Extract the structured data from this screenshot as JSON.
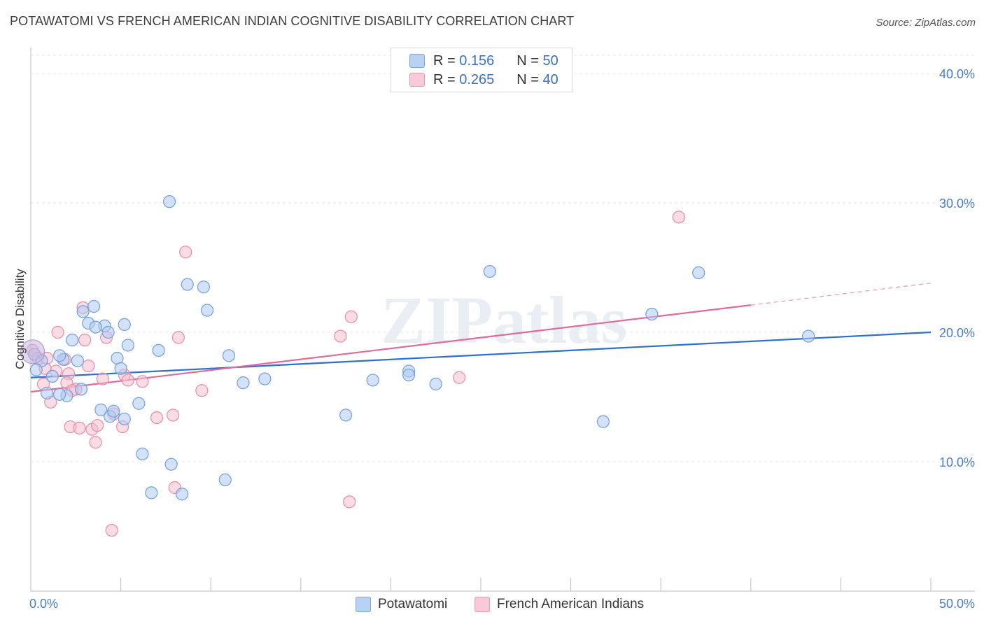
{
  "title": "POTAWATOMI VS FRENCH AMERICAN INDIAN COGNITIVE DISABILITY CORRELATION CHART",
  "source": "Source: ZipAtlas.com",
  "watermark": "ZIPatlas",
  "legend_top": {
    "r_label": "R =",
    "n_label": "N =",
    "rows": [
      {
        "r": "0.156",
        "n": "50"
      },
      {
        "r": "0.265",
        "n": "40"
      }
    ]
  },
  "chart_data": {
    "type": "scatter",
    "title": "POTAWATOMI VS FRENCH AMERICAN INDIAN COGNITIVE DISABILITY CORRELATION CHART",
    "xlabel": "",
    "ylabel": "Cognitive Disability",
    "xlim": [
      0,
      50
    ],
    "ylim": [
      0,
      42
    ],
    "x_tick_labels": [
      "0.0%",
      "50.0%"
    ],
    "y_ticks": [
      10,
      20,
      30,
      40
    ],
    "y_tick_labels": [
      "10.0%",
      "20.0%",
      "30.0%",
      "40.0%"
    ],
    "grid": true,
    "colors": {
      "blue_fill": "#aecbf3",
      "blue_stroke": "#6f9fe0",
      "blue_line": "#2b6fd1",
      "pink_fill": "#f6bfd0",
      "pink_stroke": "#e98aa9",
      "pink_line": "#e06b98",
      "axis_label": "#4a7cc9"
    },
    "series": [
      {
        "name": "Potawatomi",
        "R": 0.156,
        "N": 50,
        "trend": {
          "x": [
            0,
            50
          ],
          "y": [
            16.5,
            20.0
          ]
        },
        "points": [
          [
            0.2,
            18.3
          ],
          [
            0.6,
            17.8
          ],
          [
            0.3,
            17.1
          ],
          [
            1.2,
            16.6
          ],
          [
            1.8,
            17.9
          ],
          [
            1.6,
            18.2
          ],
          [
            0.9,
            15.3
          ],
          [
            2.0,
            15.1
          ],
          [
            2.8,
            15.6
          ],
          [
            3.5,
            22.0
          ],
          [
            3.2,
            20.7
          ],
          [
            4.1,
            20.5
          ],
          [
            2.3,
            19.4
          ],
          [
            2.9,
            21.6
          ],
          [
            5.2,
            20.6
          ],
          [
            4.3,
            20.0
          ],
          [
            4.8,
            18.0
          ],
          [
            5.4,
            19.0
          ],
          [
            7.1,
            18.6
          ],
          [
            3.9,
            14.0
          ],
          [
            4.4,
            13.5
          ],
          [
            5.2,
            13.3
          ],
          [
            6.0,
            14.5
          ],
          [
            4.6,
            13.9
          ],
          [
            8.7,
            23.7
          ],
          [
            9.6,
            23.5
          ],
          [
            7.7,
            30.1
          ],
          [
            9.8,
            21.7
          ],
          [
            11.0,
            18.2
          ],
          [
            11.8,
            16.1
          ],
          [
            13.0,
            16.4
          ],
          [
            6.2,
            10.6
          ],
          [
            7.8,
            9.8
          ],
          [
            10.8,
            8.6
          ],
          [
            6.7,
            7.6
          ],
          [
            8.4,
            7.5
          ],
          [
            19.0,
            16.3
          ],
          [
            21.0,
            17.0
          ],
          [
            21.0,
            16.7
          ],
          [
            22.5,
            16.0
          ],
          [
            17.5,
            13.6
          ],
          [
            25.5,
            24.7
          ],
          [
            31.8,
            13.1
          ],
          [
            34.5,
            21.4
          ],
          [
            37.1,
            24.6
          ],
          [
            43.2,
            19.7
          ],
          [
            1.6,
            15.2
          ],
          [
            2.6,
            17.8
          ],
          [
            5.0,
            17.2
          ],
          [
            3.6,
            20.4
          ]
        ]
      },
      {
        "name": "French American Indians",
        "R": 0.265,
        "N": 40,
        "trend": {
          "x": [
            0,
            40
          ],
          "y": [
            15.4,
            22.1
          ]
        },
        "trend_dashed": {
          "x": [
            40,
            50
          ],
          "y": [
            22.1,
            23.8
          ]
        },
        "points": [
          [
            0.1,
            18.6
          ],
          [
            0.4,
            18.0
          ],
          [
            0.8,
            17.2
          ],
          [
            0.7,
            16.0
          ],
          [
            1.1,
            14.6
          ],
          [
            1.5,
            20.0
          ],
          [
            1.9,
            17.9
          ],
          [
            2.1,
            16.8
          ],
          [
            2.5,
            15.6
          ],
          [
            2.0,
            16.1
          ],
          [
            2.9,
            21.9
          ],
          [
            3.0,
            19.4
          ],
          [
            3.2,
            17.4
          ],
          [
            4.0,
            16.4
          ],
          [
            4.2,
            19.6
          ],
          [
            3.4,
            12.5
          ],
          [
            2.2,
            12.7
          ],
          [
            3.6,
            11.5
          ],
          [
            3.7,
            12.8
          ],
          [
            4.6,
            13.7
          ],
          [
            5.1,
            12.7
          ],
          [
            5.2,
            16.7
          ],
          [
            5.4,
            16.3
          ],
          [
            6.2,
            16.2
          ],
          [
            7.0,
            13.4
          ],
          [
            7.9,
            13.6
          ],
          [
            8.2,
            19.6
          ],
          [
            8.6,
            26.2
          ],
          [
            9.5,
            15.5
          ],
          [
            8.0,
            8.0
          ],
          [
            4.5,
            4.7
          ],
          [
            17.2,
            19.7
          ],
          [
            17.8,
            21.2
          ],
          [
            17.7,
            6.9
          ],
          [
            23.8,
            16.5
          ],
          [
            36.0,
            28.9
          ],
          [
            0.9,
            18.0
          ],
          [
            1.4,
            17.0
          ],
          [
            2.3,
            15.5
          ],
          [
            2.7,
            12.6
          ]
        ]
      }
    ]
  },
  "bottom_legend": [
    "Potawatomi",
    "French American Indians"
  ]
}
